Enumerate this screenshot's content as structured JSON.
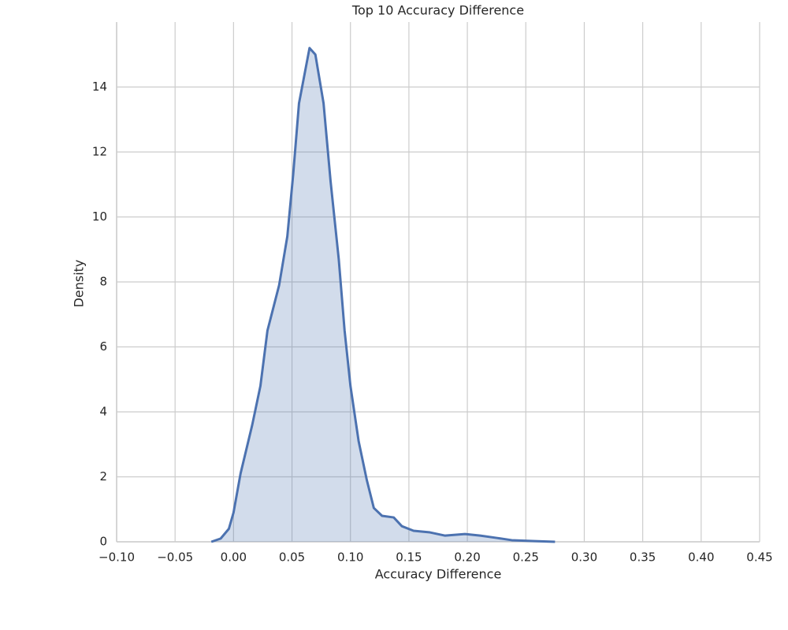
{
  "chart_data": {
    "type": "kde",
    "title": "Top 10 Accuracy Difference",
    "x_label": "Accuracy Difference",
    "y_label": "Density",
    "color": "#4c72b0",
    "grid": true,
    "xlim": [
      -0.1,
      0.45
    ],
    "ylim": [
      0,
      16
    ],
    "xticks": [
      {
        "value": -0.1,
        "label": "−0.10"
      },
      {
        "value": -0.05,
        "label": "−0.05"
      },
      {
        "value": 0,
        "label": "0.00"
      },
      {
        "value": 0.05,
        "label": "0.05"
      },
      {
        "value": 0.1,
        "label": "0.10"
      },
      {
        "value": 0.15,
        "label": "0.15"
      },
      {
        "value": 0.2,
        "label": "0.20"
      },
      {
        "value": 0.25,
        "label": "0.25"
      },
      {
        "value": 0.3,
        "label": "0.30"
      },
      {
        "value": 0.35,
        "label": "0.35"
      },
      {
        "value": 0.4,
        "label": "0.40"
      },
      {
        "value": 0.45,
        "label": "0.45"
      }
    ],
    "yticks": [
      0,
      2,
      4,
      6,
      8,
      10,
      12,
      14
    ],
    "x": [
      -0.019,
      -0.011,
      -0.004,
      0.0,
      0.006,
      0.016,
      0.023,
      0.029,
      0.039,
      0.046,
      0.051,
      0.056,
      0.065,
      0.07,
      0.077,
      0.083,
      0.09,
      0.095,
      0.1,
      0.107,
      0.114,
      0.12,
      0.127,
      0.137,
      0.144,
      0.154,
      0.168,
      0.181,
      0.198,
      0.211,
      0.225,
      0.238,
      0.258,
      0.275
    ],
    "values": [
      0,
      0.1,
      0.4,
      0.9,
      2.1,
      3.6,
      4.8,
      6.5,
      7.9,
      9.4,
      11.3,
      13.5,
      15.2,
      15.0,
      13.5,
      11.1,
      8.7,
      6.5,
      4.8,
      3.1,
      1.9,
      1.04,
      0.8,
      0.75,
      0.48,
      0.34,
      0.29,
      0.19,
      0.24,
      0.19,
      0.12,
      0.05,
      0.02,
      0
    ]
  }
}
